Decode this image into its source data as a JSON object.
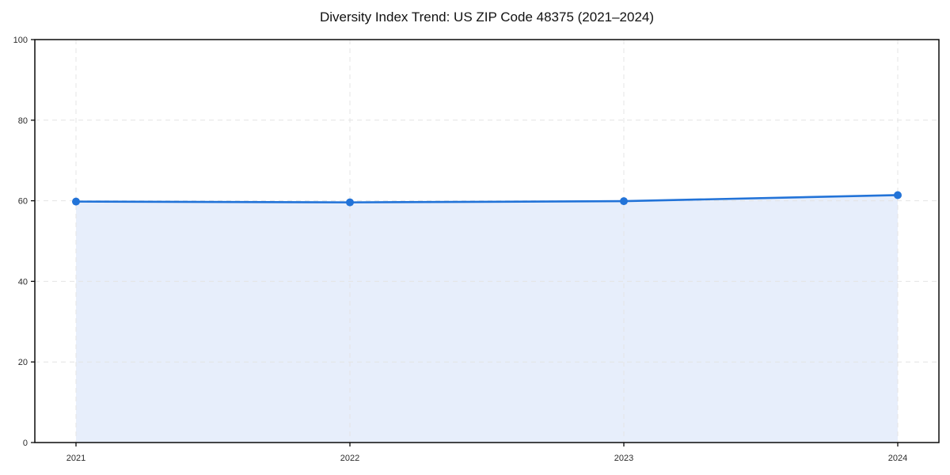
{
  "chart": {
    "title": "Diversity Index Trend: US ZIP Code 48375 (2021–2024)"
  },
  "chart_data": {
    "type": "area",
    "title": "Diversity Index Trend: US ZIP Code 48375 (2021–2024)",
    "x": [
      "2021",
      "2022",
      "2023",
      "2024"
    ],
    "series": [
      {
        "name": "Diversity Index",
        "values": [
          59.8,
          59.6,
          59.9,
          61.4
        ]
      }
    ],
    "xlabel": "",
    "ylabel": "",
    "ylim": [
      0,
      100
    ],
    "yticks": [
      0,
      20,
      40,
      60,
      80,
      100
    ],
    "grid": true,
    "grid_style": "dashed",
    "legend": "none",
    "marker": "circle",
    "line_width": 2.6,
    "marker_radius": 5,
    "colors": {
      "line": "#2273d8",
      "marker": "#2273d8",
      "fill": "#e7eefb",
      "grid": "#e4e4e4",
      "spine": "#0a0a0a",
      "tick_text": "#2b2b2b",
      "title_text": "#111111",
      "background": "#ffffff"
    }
  }
}
